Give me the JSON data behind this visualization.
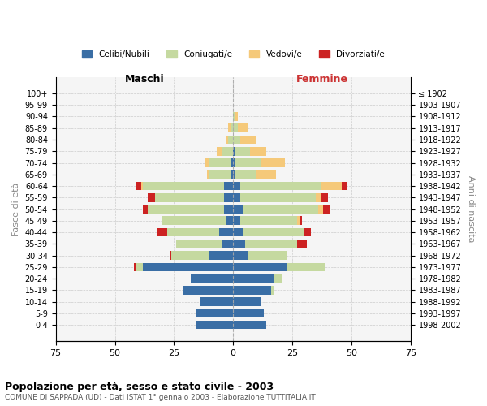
{
  "age_groups": [
    "100+",
    "95-99",
    "90-94",
    "85-89",
    "80-84",
    "75-79",
    "70-74",
    "65-69",
    "60-64",
    "55-59",
    "50-54",
    "45-49",
    "40-44",
    "35-39",
    "30-34",
    "25-29",
    "20-24",
    "15-19",
    "10-14",
    "5-9",
    "0-4"
  ],
  "birth_years": [
    "≤ 1902",
    "1903-1907",
    "1908-1912",
    "1913-1917",
    "1918-1922",
    "1923-1927",
    "1928-1932",
    "1933-1937",
    "1938-1942",
    "1943-1947",
    "1948-1952",
    "1953-1957",
    "1958-1962",
    "1963-1967",
    "1968-1972",
    "1973-1977",
    "1978-1982",
    "1983-1987",
    "1988-1992",
    "1993-1997",
    "1998-2002"
  ],
  "colors": {
    "celibi": "#3a6ea5",
    "coniugati": "#c5d9a0",
    "vedovi": "#f5c97a",
    "divorziati": "#cc2222"
  },
  "males": {
    "celibi": [
      0,
      0,
      0,
      0,
      0,
      0,
      1,
      1,
      4,
      4,
      4,
      3,
      6,
      5,
      10,
      38,
      18,
      21,
      14,
      16,
      16
    ],
    "coniugati": [
      0,
      0,
      0,
      1,
      2,
      5,
      9,
      9,
      34,
      29,
      32,
      27,
      22,
      19,
      16,
      3,
      0,
      0,
      0,
      0,
      0
    ],
    "vedovi": [
      0,
      0,
      0,
      1,
      1,
      2,
      2,
      1,
      1,
      0,
      0,
      0,
      0,
      0,
      0,
      0,
      0,
      0,
      0,
      0,
      0
    ],
    "divorziati": [
      0,
      0,
      0,
      0,
      0,
      0,
      0,
      0,
      2,
      3,
      2,
      0,
      4,
      0,
      1,
      1,
      0,
      0,
      0,
      0,
      0
    ]
  },
  "females": {
    "nubili": [
      0,
      0,
      0,
      0,
      0,
      1,
      1,
      1,
      3,
      3,
      4,
      3,
      4,
      5,
      6,
      23,
      17,
      16,
      12,
      13,
      14
    ],
    "coniugate": [
      0,
      0,
      1,
      2,
      3,
      6,
      11,
      9,
      34,
      32,
      32,
      24,
      26,
      22,
      17,
      16,
      4,
      1,
      0,
      0,
      0
    ],
    "vedove": [
      0,
      0,
      1,
      4,
      7,
      7,
      10,
      8,
      9,
      2,
      2,
      1,
      0,
      0,
      0,
      0,
      0,
      0,
      0,
      0,
      0
    ],
    "divorziate": [
      0,
      0,
      0,
      0,
      0,
      0,
      0,
      0,
      2,
      3,
      3,
      1,
      3,
      4,
      0,
      0,
      0,
      0,
      0,
      0,
      0
    ]
  },
  "xlim": 75,
  "title": "Popolazione per età, sesso e stato civile - 2003",
  "subtitle": "COMUNE DI SAPPADA (UD) - Dati ISTAT 1° gennaio 2003 - Elaborazione TUTTITALIA.IT",
  "ylabel_left": "Fasce di età",
  "ylabel_right": "Anni di nascita",
  "xlabel_left": "Maschi",
  "xlabel_right": "Femmine"
}
